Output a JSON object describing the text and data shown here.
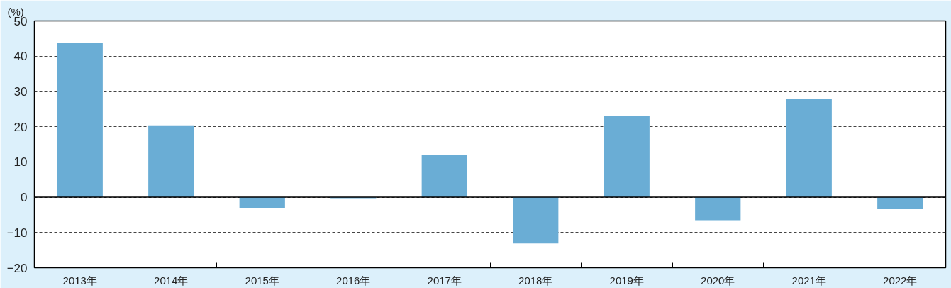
{
  "chart_data": {
    "type": "bar",
    "ylabel": "(%)",
    "categories": [
      "2013年",
      "2014年",
      "2015年",
      "2016年",
      "2017年",
      "2018年",
      "2019年",
      "2020年",
      "2021年",
      "2022年"
    ],
    "values": [
      43.7,
      20.4,
      -3.0,
      -0.3,
      12.0,
      -13.1,
      23.1,
      -6.5,
      27.8,
      -3.2
    ],
    "color": "#6aadd5",
    "ylim": [
      -20,
      50
    ],
    "yticks": [
      -20,
      -10,
      0,
      10,
      20,
      30,
      40,
      50
    ],
    "grid": "y",
    "ref_lines": [
      {
        "axis": "y",
        "value": 0,
        "color": "#000000",
        "line_style": "solid"
      }
    ]
  }
}
